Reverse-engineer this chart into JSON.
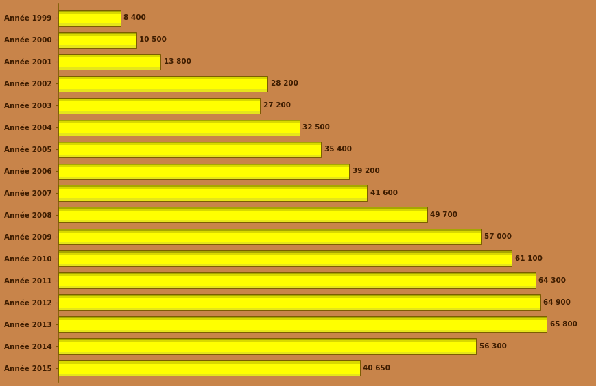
{
  "categories": [
    "Année 1999",
    "Année 2000",
    "Année 2001",
    "Année 2002",
    "Année 2003",
    "Année 2004",
    "Année 2005",
    "Année 2006",
    "Année 2007",
    "Année 2008",
    "Année 2009",
    "Année 2010",
    "Année 2011",
    "Année 2012",
    "Année 2013",
    "Année 2014",
    "Année 2015"
  ],
  "values": [
    8400,
    10500,
    13800,
    28200,
    27200,
    32500,
    35400,
    39200,
    41600,
    49700,
    57000,
    61100,
    64300,
    64900,
    65800,
    56300,
    40650
  ],
  "labels": [
    "8 400",
    "10 500",
    "13 800",
    "28 200",
    "27 200",
    "32 500",
    "35 400",
    "39 200",
    "41 600",
    "49 700",
    "57 000",
    "61 100",
    "64 300",
    "64 900",
    "65 800",
    "56 300",
    "40 650"
  ],
  "bar_color_top": "#FFFF00",
  "bar_color_mid": "#FFFF00",
  "bar_color_bot": "#AAAA00",
  "bar_edge_color": "#7A5C00",
  "background_color": "#C8844A",
  "text_color": "#3D1C00",
  "label_fontsize": 7.5,
  "tick_fontsize": 7.5,
  "xlim": [
    0,
    72000
  ],
  "bar_height": 0.72,
  "max_val": 65800
}
